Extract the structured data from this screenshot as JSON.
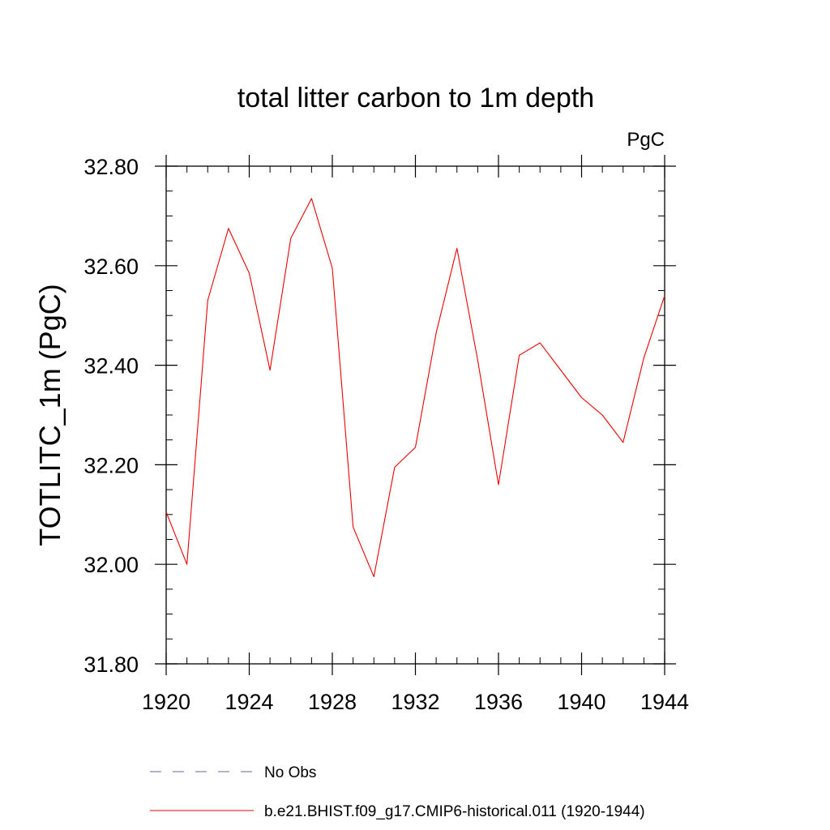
{
  "chart_data": {
    "type": "line",
    "title": "total litter carbon to 1m depth",
    "units": "PgC",
    "ylabel": "TOTLITC_1m  (PgC)",
    "xlabel": "",
    "xlim": [
      1920,
      1944
    ],
    "ylim": [
      31.8,
      32.8
    ],
    "xticks": [
      1920,
      1924,
      1928,
      1932,
      1936,
      1940,
      1944
    ],
    "xtick_labels": [
      "1920",
      "1924",
      "1928",
      "1932",
      "1936",
      "1940",
      "1944"
    ],
    "yticks": [
      31.8,
      32.0,
      32.2,
      32.4,
      32.6,
      32.8
    ],
    "ytick_labels": [
      "31.80",
      "32.00",
      "32.20",
      "32.40",
      "32.60",
      "32.80"
    ],
    "x_minor_step": 1,
    "y_minor_step": 0.05,
    "grid": false,
    "legend_position": "bottom",
    "legend": [
      {
        "label": "No Obs",
        "color": "#6666aa",
        "style": "dashed"
      },
      {
        "label": "b.e21.BHIST.f09_g17.CMIP6-historical.011 (1920-1944)",
        "color": "#ee0000",
        "style": "solid"
      }
    ],
    "series": [
      {
        "name": "b.e21.BHIST.f09_g17.CMIP6-historical.011 (1920-1944)",
        "color": "#ee0000",
        "x": [
          1920,
          1921,
          1922,
          1923,
          1924,
          1925,
          1926,
          1927,
          1928,
          1929,
          1930,
          1931,
          1932,
          1933,
          1934,
          1935,
          1936,
          1937,
          1938,
          1939,
          1940,
          1941,
          1942,
          1943,
          1944
        ],
        "values": [
          32.105,
          32.0,
          32.53,
          32.675,
          32.585,
          32.39,
          32.655,
          32.735,
          32.595,
          32.075,
          31.975,
          32.195,
          32.235,
          32.465,
          32.635,
          32.41,
          32.16,
          32.42,
          32.445,
          32.39,
          32.335,
          32.3,
          32.245,
          32.415,
          32.54
        ]
      }
    ]
  }
}
